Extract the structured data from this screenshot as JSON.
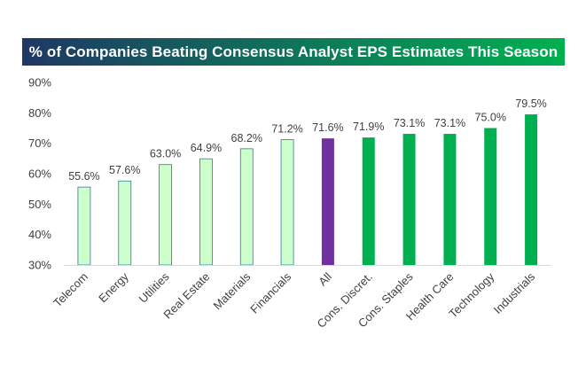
{
  "chart_data": {
    "type": "bar",
    "title": "% of Companies Beating Consensus Analyst EPS Estimates This Season",
    "xlabel": "",
    "ylabel": "",
    "categories": [
      "Telecom",
      "Energy",
      "Utilities",
      "Real Estate",
      "Materials",
      "Financials",
      "All",
      "Cons. Discret.",
      "Cons. Staples",
      "Health Care",
      "Technology",
      "Industrials"
    ],
    "values": [
      55.6,
      57.6,
      63.0,
      64.9,
      68.2,
      71.2,
      71.6,
      71.9,
      73.1,
      73.1,
      75.0,
      79.5
    ],
    "value_labels": [
      "55.6%",
      "57.6%",
      "63.0%",
      "64.9%",
      "68.2%",
      "71.2%",
      "71.6%",
      "71.9%",
      "73.1%",
      "73.1%",
      "75.0%",
      "79.5%"
    ],
    "ylim": [
      30,
      90
    ],
    "yticks": [
      30,
      40,
      50,
      60,
      70,
      80,
      90
    ],
    "ytick_labels": [
      "30%",
      "40%",
      "50%",
      "60%",
      "70%",
      "80%",
      "90%"
    ],
    "grid": false,
    "legend": "none",
    "bar_styles": [
      "light",
      "light",
      "light",
      "light",
      "light",
      "light",
      "highlight",
      "dark",
      "dark",
      "dark",
      "dark",
      "dark"
    ],
    "colors": {
      "light_fill": "#ccffcc",
      "light_stroke": "#2e75b6",
      "highlight": "#7030a0",
      "dark": "#00b050",
      "title_gradient_start": "#1f3864",
      "title_gradient_end": "#00b050",
      "axis": "#d9d9d9",
      "text": "#404040"
    }
  }
}
